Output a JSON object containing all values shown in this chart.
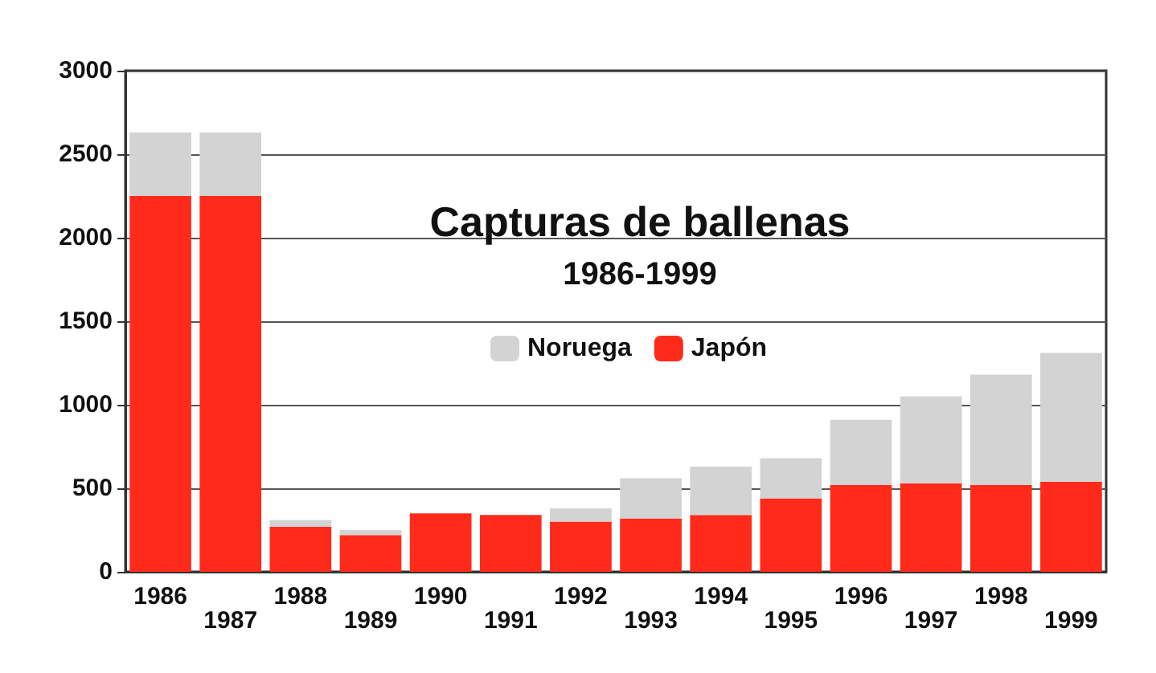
{
  "chart_data": {
    "type": "bar",
    "title": "Capturas de ballenas",
    "subtitle": "1986-1999",
    "categories": [
      "1986",
      "1987",
      "1988",
      "1989",
      "1990",
      "1991",
      "1992",
      "1993",
      "1994",
      "1995",
      "1996",
      "1997",
      "1998",
      "1999"
    ],
    "stacked": true,
    "series": [
      {
        "name": "Japón",
        "color": "#ff2a1a",
        "values": [
          2250,
          2250,
          270,
          220,
          350,
          340,
          300,
          320,
          340,
          440,
          520,
          530,
          520,
          540
        ]
      },
      {
        "name": "Noruega",
        "color": "#d3d3d3",
        "values": [
          380,
          380,
          40,
          30,
          0,
          0,
          80,
          240,
          290,
          240,
          390,
          520,
          660,
          770
        ]
      }
    ],
    "ylim": [
      0,
      3000
    ],
    "yticks": [
      0,
      500,
      1000,
      1500,
      2000,
      2500,
      3000
    ],
    "grid": "y",
    "legend": "center"
  }
}
